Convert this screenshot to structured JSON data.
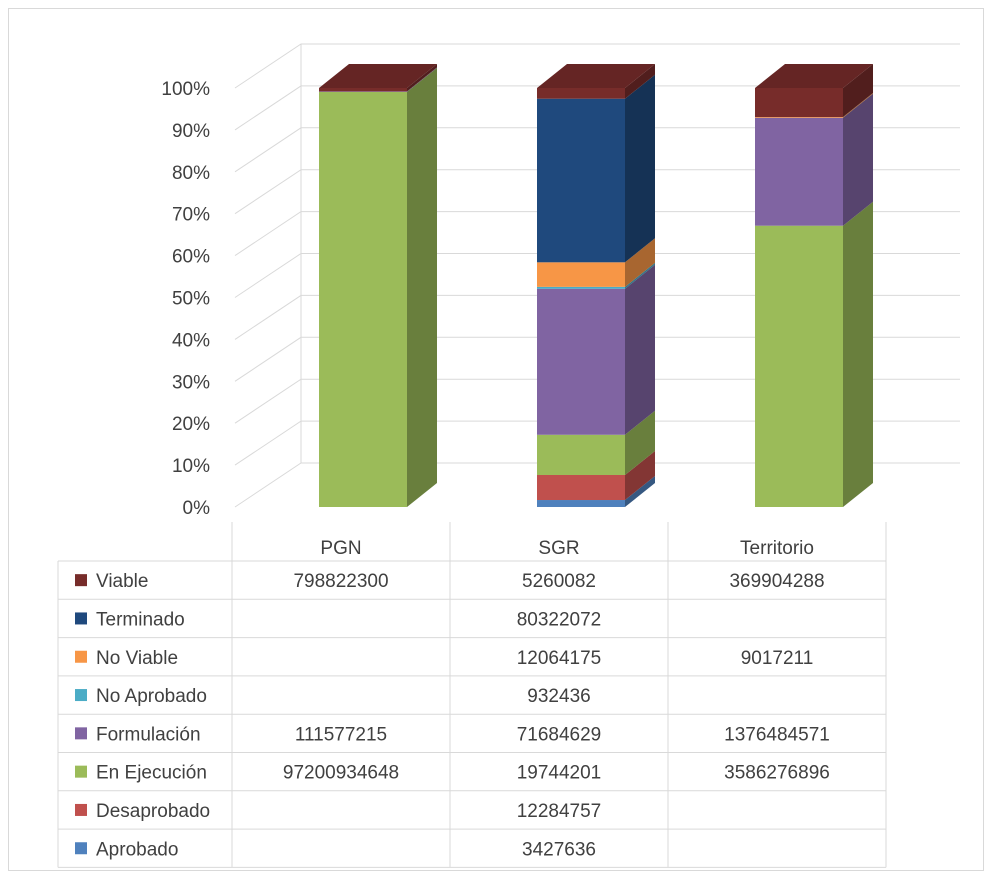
{
  "chart_data": {
    "type": "bar",
    "stacked": "percent",
    "three_d": true,
    "title": "",
    "categories": [
      "PGN",
      "SGR",
      "Territorio"
    ],
    "ylim": [
      0,
      100
    ],
    "y_ticks": [
      "0%",
      "10%",
      "20%",
      "30%",
      "40%",
      "50%",
      "60%",
      "70%",
      "80%",
      "90%",
      "100%"
    ],
    "grid": true,
    "legend": "data table",
    "series": [
      {
        "name": "Aprobado",
        "color": "#4f81bd",
        "values": [
          null,
          3427636,
          null
        ],
        "labels": [
          "",
          "3427636",
          ""
        ]
      },
      {
        "name": "Desaprobado",
        "color": "#c0504d",
        "values": [
          null,
          12284757,
          null
        ],
        "labels": [
          "",
          "12284757",
          ""
        ]
      },
      {
        "name": "En Ejecución",
        "color": "#9bbb59",
        "values": [
          97200934648,
          19744201,
          3586276896
        ],
        "labels": [
          "97200934648",
          "19744201",
          "3586276896"
        ]
      },
      {
        "name": "Formulación",
        "color": "#8064a2",
        "values": [
          111577215,
          71684629,
          1376484571
        ],
        "labels": [
          "111577215",
          "71684629",
          "1376484571"
        ]
      },
      {
        "name": "No Aprobado",
        "color": "#4bacc6",
        "values": [
          null,
          932436,
          null
        ],
        "labels": [
          "",
          "932436",
          ""
        ]
      },
      {
        "name": "No Viable",
        "color": "#f79646",
        "values": [
          null,
          12064175,
          9017211
        ],
        "labels": [
          "",
          "12064175",
          "9017211"
        ]
      },
      {
        "name": "Terminado",
        "color": "#1f497d",
        "values": [
          null,
          80322072,
          null
        ],
        "labels": [
          "",
          "80322072",
          ""
        ]
      },
      {
        "name": "Viable",
        "color": "#772c2a",
        "values": [
          798822300,
          5260082,
          369904288
        ],
        "labels": [
          "798822300",
          "5260082",
          "369904288"
        ]
      }
    ]
  }
}
